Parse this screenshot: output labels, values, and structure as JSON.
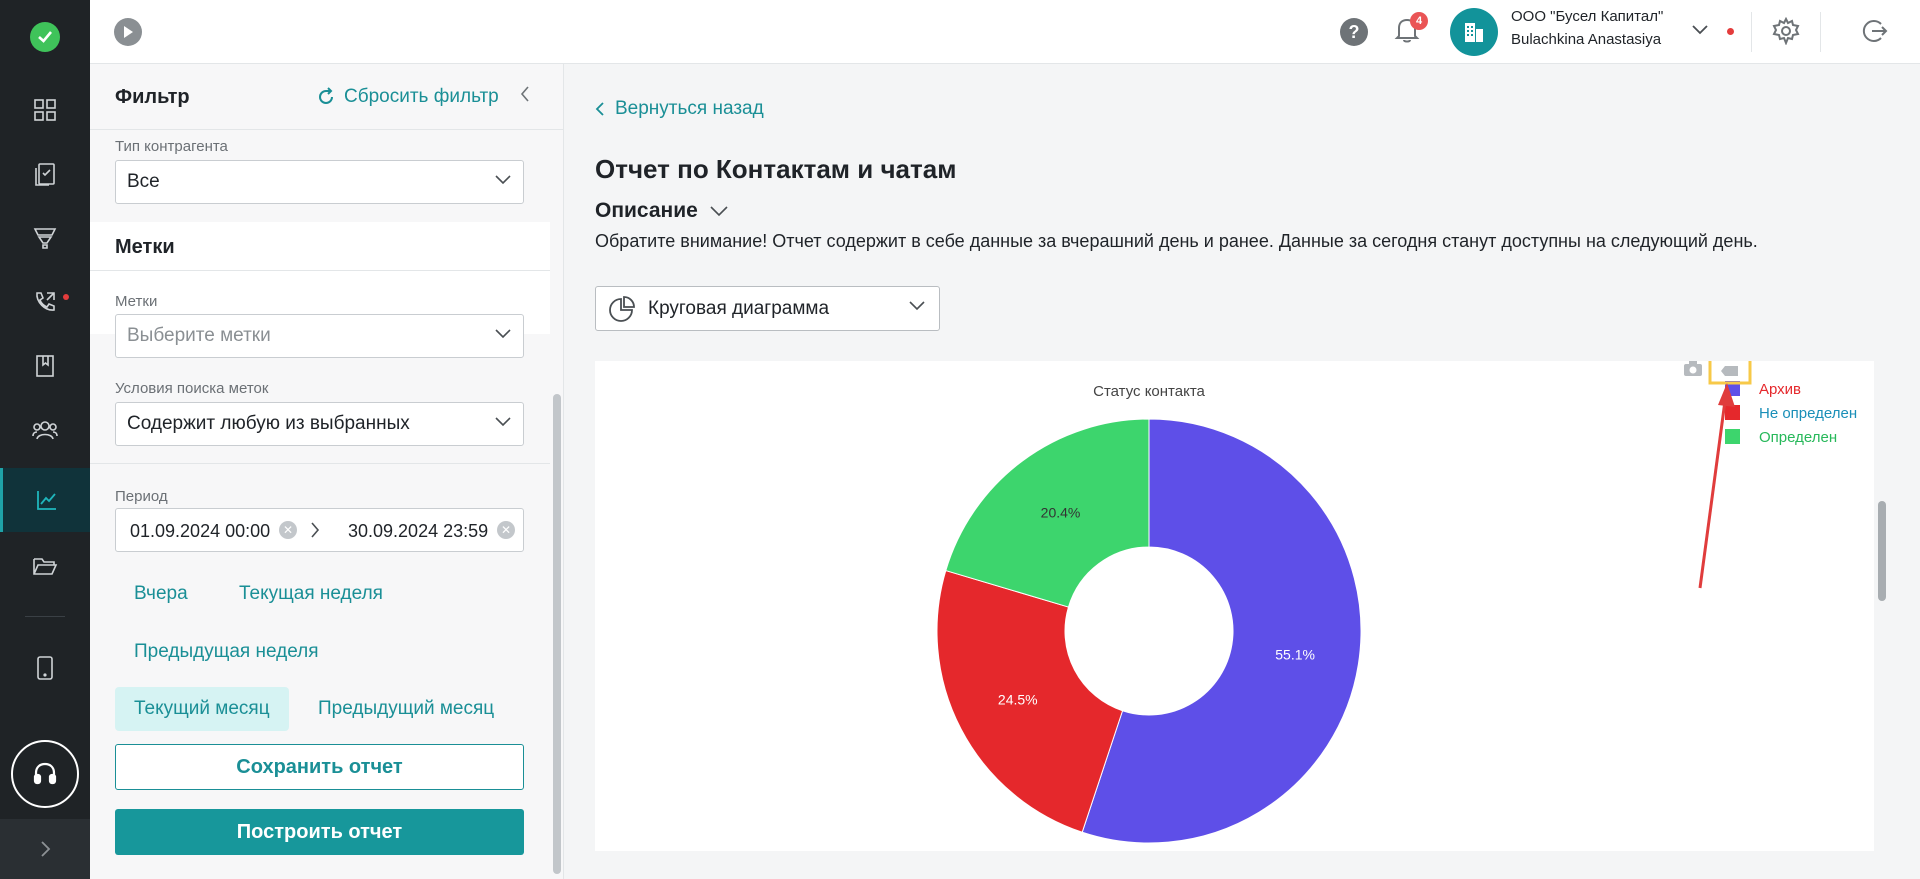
{
  "topbar": {
    "notifications_count": "4",
    "company": "ООО \"Бусел Капитал\"",
    "user": "Bulachkina Anastasiya"
  },
  "rail": {
    "icons": [
      "dashboard-icon",
      "documents-icon",
      "funnel-icon",
      "phone-icon",
      "book-icon",
      "users-icon",
      "analytics-icon",
      "folder-icon",
      "tablet-icon",
      "headset-icon",
      "chevron-right-icon"
    ],
    "active": "analytics-icon"
  },
  "filter": {
    "title": "Фильтр",
    "reset_label": "Сбросить фильтр",
    "counterparty_type_label": "Тип контрагента",
    "counterparty_type_value": "Все",
    "tags_section_title": "Метки",
    "tags_label": "Метки",
    "tags_placeholder": "Выберите метки",
    "tag_conditions_label": "Условия поиска меток",
    "tag_conditions_value": "Содержит любую из выбранных",
    "period_label": "Период",
    "period_from": "01.09.2024 00:00",
    "period_to": "30.09.2024 23:59",
    "quick_periods": [
      {
        "label": "Вчера",
        "active": false
      },
      {
        "label": "Текущая неделя",
        "active": false
      },
      {
        "label": "Предыдущая неделя",
        "active": false
      },
      {
        "label": "Текущий месяц",
        "active": true
      },
      {
        "label": "Предыдущий месяц",
        "active": false
      }
    ],
    "save_label": "Сохранить отчет",
    "build_label": "Построить отчет"
  },
  "main": {
    "back_label": "Вернуться назад",
    "title": "Отчет по Контактам и чатам",
    "description_label": "Описание",
    "notice": "Обратите внимание! Отчет содержит в себе данные за вчерашний день и ранее. Данные за сегодня станут доступны на следующий день.",
    "chart_type_label": "Круговая диаграмма"
  },
  "colors": {
    "accent": "#1a8f96",
    "highlight_box": "#f7c948",
    "arrow": "#e03c3c"
  },
  "chart_data": {
    "type": "pie",
    "title": "Статус контакта",
    "hole": true,
    "labels": [
      "Архив",
      "Не определен",
      "Определен"
    ],
    "values": [
      55.1,
      24.5,
      20.4
    ],
    "value_labels": [
      "55.1%",
      "24.5%",
      "20.4%"
    ],
    "colors": [
      "#5e4fe8",
      "#e5282c",
      "#3dd56d"
    ],
    "legend_colors": [
      "#e5282c",
      "#1a8fb8",
      "#27b85a"
    ],
    "legend_position": "top-right"
  }
}
